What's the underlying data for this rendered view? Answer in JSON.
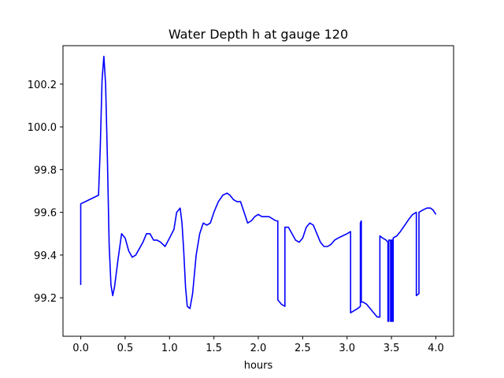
{
  "chart_data": {
    "type": "line",
    "title": "Water Depth h at gauge 120",
    "xlabel": "hours",
    "ylabel": "",
    "xlim": [
      -0.2,
      4.2
    ],
    "ylim": [
      99.02,
      100.38
    ],
    "x_ticks": [
      0.0,
      0.5,
      1.0,
      1.5,
      2.0,
      2.5,
      3.0,
      3.5,
      4.0
    ],
    "x_tick_labels": [
      "0.0",
      "0.5",
      "1.0",
      "1.5",
      "2.0",
      "2.5",
      "3.0",
      "3.5",
      "4.0"
    ],
    "y_ticks": [
      99.2,
      99.4,
      99.6,
      99.8,
      100.0,
      100.2
    ],
    "y_tick_labels": [
      "99.2",
      "99.4",
      "99.6",
      "99.8",
      "100.0",
      "100.2"
    ],
    "grid": false,
    "series": [
      {
        "color": "#0000ff",
        "x": [
          0.0,
          0.0,
          0.05,
          0.1,
          0.15,
          0.2,
          0.22,
          0.24,
          0.26,
          0.28,
          0.3,
          0.32,
          0.34,
          0.36,
          0.38,
          0.42,
          0.46,
          0.5,
          0.54,
          0.58,
          0.62,
          0.66,
          0.7,
          0.74,
          0.78,
          0.82,
          0.86,
          0.9,
          0.95,
          1.0,
          1.05,
          1.08,
          1.12,
          1.14,
          1.16,
          1.18,
          1.2,
          1.23,
          1.26,
          1.3,
          1.34,
          1.38,
          1.42,
          1.46,
          1.5,
          1.55,
          1.6,
          1.65,
          1.68,
          1.72,
          1.76,
          1.8,
          1.84,
          1.88,
          1.92,
          1.96,
          2.0,
          2.04,
          2.08,
          2.12,
          2.16,
          2.2,
          2.22,
          2.22,
          2.26,
          2.3,
          2.3,
          2.34,
          2.38,
          2.42,
          2.46,
          2.5,
          2.54,
          2.58,
          2.62,
          2.66,
          2.7,
          2.74,
          2.78,
          2.82,
          2.86,
          2.9,
          2.95,
          3.0,
          3.04,
          3.04,
          3.08,
          3.12,
          3.15,
          3.15,
          3.16,
          3.16,
          3.18,
          3.22,
          3.26,
          3.3,
          3.34,
          3.37,
          3.37,
          3.4,
          3.44,
          3.46,
          3.46,
          3.47,
          3.47,
          3.49,
          3.49,
          3.5,
          3.5,
          3.51,
          3.51,
          3.52,
          3.52,
          3.56,
          3.6,
          3.65,
          3.7,
          3.74,
          3.78,
          3.78,
          3.81,
          3.81,
          3.85,
          3.9,
          3.94,
          3.97,
          4.0
        ],
        "y": [
          99.26,
          99.64,
          99.65,
          99.66,
          99.67,
          99.68,
          99.9,
          100.22,
          100.33,
          100.2,
          99.85,
          99.45,
          99.26,
          99.21,
          99.25,
          99.38,
          99.5,
          99.48,
          99.42,
          99.39,
          99.4,
          99.43,
          99.46,
          99.5,
          99.5,
          99.47,
          99.47,
          99.46,
          99.44,
          99.48,
          99.52,
          99.6,
          99.62,
          99.55,
          99.42,
          99.25,
          99.16,
          99.15,
          99.22,
          99.4,
          99.5,
          99.55,
          99.54,
          99.55,
          99.6,
          99.65,
          99.68,
          99.69,
          99.68,
          99.66,
          99.65,
          99.65,
          99.6,
          99.55,
          99.56,
          99.58,
          99.59,
          99.58,
          99.58,
          99.58,
          99.57,
          99.56,
          99.56,
          99.19,
          99.17,
          99.16,
          99.53,
          99.53,
          99.5,
          99.47,
          99.46,
          99.48,
          99.53,
          99.55,
          99.54,
          99.5,
          99.46,
          99.44,
          99.44,
          99.45,
          99.47,
          99.48,
          99.49,
          99.5,
          99.51,
          99.13,
          99.14,
          99.15,
          99.16,
          99.55,
          99.56,
          99.18,
          99.18,
          99.17,
          99.15,
          99.13,
          99.11,
          99.11,
          99.49,
          99.48,
          99.47,
          99.46,
          99.09,
          99.09,
          99.47,
          99.47,
          99.09,
          99.09,
          99.47,
          99.47,
          99.09,
          99.09,
          99.48,
          99.49,
          99.51,
          99.54,
          99.57,
          99.59,
          99.6,
          99.21,
          99.22,
          99.6,
          99.61,
          99.62,
          99.62,
          99.61,
          99.59
        ]
      }
    ]
  }
}
